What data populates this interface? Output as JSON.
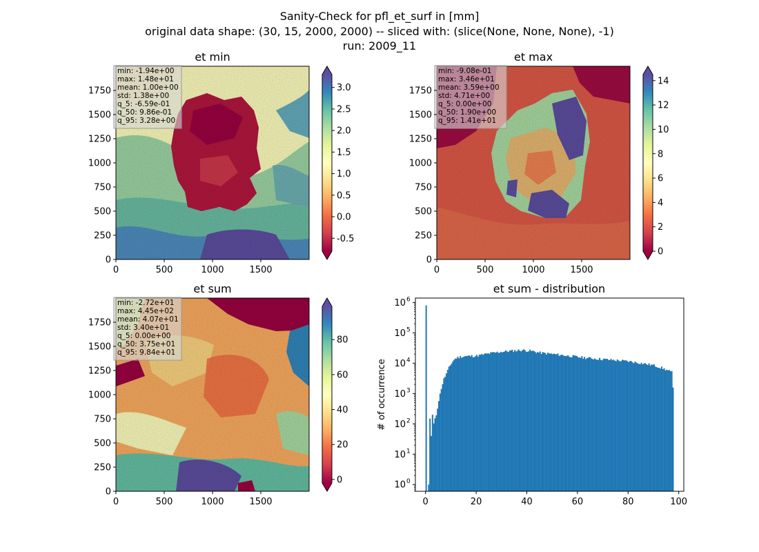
{
  "figure": {
    "title_lines": [
      "Sanity-Check for pfl_et_surf in [mm]",
      "original data shape: (30, 15, 2000, 2000) -- sliced with: (slice(None, None, None), -1)",
      "run: 2009_11"
    ]
  },
  "chart_data": [
    {
      "type": "heatmap",
      "title": "et min",
      "colormap": "Spectral",
      "xlim": [
        0,
        2000
      ],
      "ylim": [
        0,
        2000
      ],
      "xticks": [
        "0",
        "500",
        "1000",
        "1500"
      ],
      "yticks": [
        "0",
        "250",
        "500",
        "750",
        "1000",
        "1250",
        "1500",
        "1750"
      ],
      "colorbar": {
        "min": -0.8,
        "max": 3.3,
        "ticks": [
          "-0.5",
          "0.0",
          "0.5",
          "1.0",
          "1.5",
          "2.0",
          "2.5",
          "3.0"
        ],
        "extend": "both"
      },
      "stats": [
        "min: -1.94e+00",
        "max: 1.48e+01",
        "mean: 1.00e+00",
        "std: 1.38e+00",
        "q_5: -6.59e-01",
        "q_50: 9.86e-01",
        "q_95: 3.28e+00"
      ]
    },
    {
      "type": "heatmap",
      "title": "et max",
      "colormap": "Spectral",
      "xlim": [
        0,
        2000
      ],
      "ylim": [
        0,
        2000
      ],
      "xticks": [
        "0",
        "500",
        "1000",
        "1500"
      ],
      "yticks": [
        "0",
        "250",
        "500",
        "750",
        "1000",
        "1250",
        "1500",
        "1750"
      ],
      "colorbar": {
        "min": 0,
        "max": 14.5,
        "ticks": [
          "0",
          "2",
          "4",
          "6",
          "8",
          "10",
          "12",
          "14"
        ],
        "extend": "both"
      },
      "stats": [
        "min: -9.08e-01",
        "max: 3.46e+01",
        "mean: 3.59e+00",
        "std: 4.71e+00",
        "q_5: 0.00e+00",
        "q_50: 1.90e+00",
        "q_95: 1.41e+01"
      ]
    },
    {
      "type": "heatmap",
      "title": "et sum",
      "colormap": "Spectral",
      "xlim": [
        0,
        2000
      ],
      "ylim": [
        0,
        2000
      ],
      "xticks": [
        "0",
        "500",
        "1000",
        "1500"
      ],
      "yticks": [
        "0",
        "250",
        "500",
        "750",
        "1000",
        "1250",
        "1500",
        "1750"
      ],
      "colorbar": {
        "min": -2,
        "max": 99,
        "ticks": [
          "0",
          "20",
          "40",
          "60",
          "80"
        ],
        "extend": "both"
      },
      "stats": [
        "min: -2.72e+01",
        "max: 4.45e+02",
        "mean: 4.07e+01",
        "std: 3.40e+01",
        "q_5: 0.00e+00",
        "q_50: 3.75e+01",
        "q_95: 9.84e+01"
      ]
    },
    {
      "type": "bar",
      "title": "et sum - distribution",
      "ylabel": "# of occurrence",
      "yscale": "log",
      "xlim": [
        -4,
        102
      ],
      "ylim": [
        0.6,
        1400000
      ],
      "xticks": [
        0,
        20,
        40,
        60,
        80,
        100
      ],
      "yticks": [
        1,
        10,
        100,
        1000,
        10000,
        100000,
        1000000
      ],
      "color": "#1f77b4",
      "bin_width": 0.5,
      "spikes": [
        {
          "x": 0.0,
          "y": 800000
        },
        {
          "x": 1.0,
          "y": 1.0
        },
        {
          "x": 1.5,
          "y": 150
        },
        {
          "x": 2.0,
          "y": 40
        },
        {
          "x": 2.5,
          "y": 200
        }
      ],
      "envelope": [
        [
          3,
          100
        ],
        [
          4,
          200
        ],
        [
          5,
          600
        ],
        [
          6,
          1500
        ],
        [
          7,
          3000
        ],
        [
          8,
          4500
        ],
        [
          9,
          7000
        ],
        [
          10,
          10000
        ],
        [
          11,
          13000
        ],
        [
          12,
          15000
        ],
        [
          14,
          16500
        ],
        [
          16,
          17000
        ],
        [
          20,
          17500
        ],
        [
          25,
          21000
        ],
        [
          30,
          24000
        ],
        [
          35,
          26000
        ],
        [
          38,
          27000
        ],
        [
          42,
          25000
        ],
        [
          45,
          22000
        ],
        [
          50,
          20000
        ],
        [
          55,
          18000
        ],
        [
          60,
          16000
        ],
        [
          65,
          14500
        ],
        [
          70,
          13500
        ],
        [
          75,
          12500
        ],
        [
          80,
          11500
        ],
        [
          85,
          10000
        ],
        [
          90,
          8500
        ],
        [
          93,
          7000
        ],
        [
          95,
          6000
        ],
        [
          97,
          5000
        ],
        [
          97.5,
          1500
        ],
        [
          98,
          5000
        ]
      ]
    }
  ]
}
